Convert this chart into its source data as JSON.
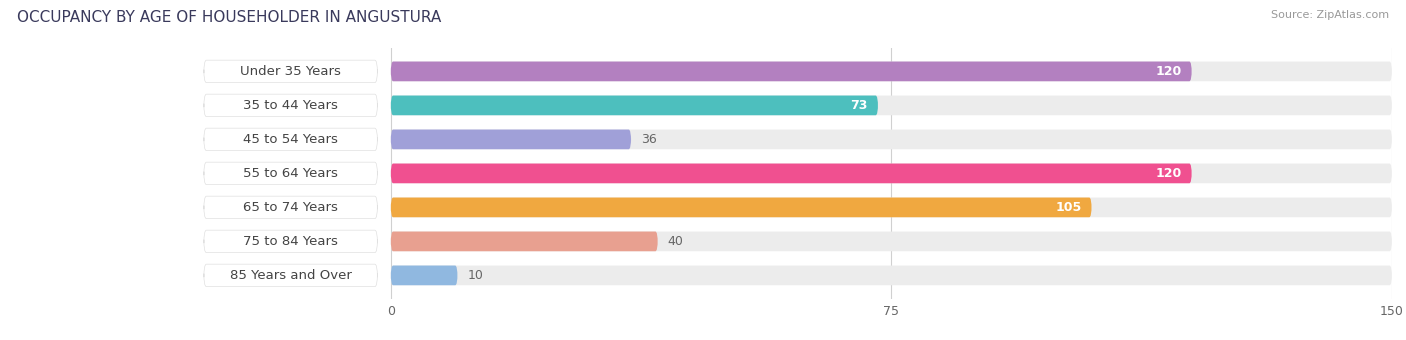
{
  "title": "OCCUPANCY BY AGE OF HOUSEHOLDER IN ANGUSTURA",
  "source": "Source: ZipAtlas.com",
  "categories": [
    "Under 35 Years",
    "35 to 44 Years",
    "45 to 54 Years",
    "55 to 64 Years",
    "65 to 74 Years",
    "75 to 84 Years",
    "85 Years and Over"
  ],
  "values": [
    120,
    73,
    36,
    120,
    105,
    40,
    10
  ],
  "bar_colors": [
    "#b380c0",
    "#4dbfbe",
    "#a0a0d8",
    "#f05090",
    "#f0a840",
    "#e8a090",
    "#90b8e0"
  ],
  "xlim_data": [
    0,
    150
  ],
  "xticks": [
    0,
    75,
    150
  ],
  "label_fontsize": 9.5,
  "bar_height": 0.58,
  "title_fontsize": 11,
  "value_fontsize": 9
}
